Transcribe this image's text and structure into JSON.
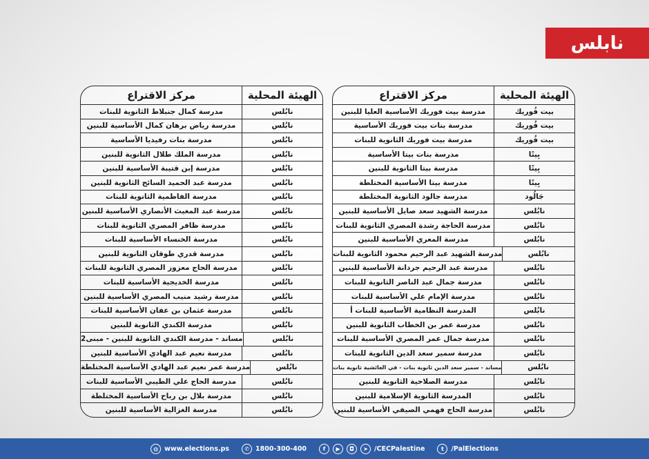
{
  "banner": {
    "title": "نابلس",
    "color": "#d0252b"
  },
  "table_headers": {
    "local_body": "الهيئة المحلية",
    "polling_center": "مركز الاقتراع"
  },
  "right_table": [
    [
      "بيت فُوريك",
      "مدرسة بيت فوريك الأساسية العليا للبنين"
    ],
    [
      "بيت فُوريك",
      "مدرسة بنات بيت فوريك الأساسية"
    ],
    [
      "بيت فُوريك",
      "مدرسة بيت فوريك الثانوية للبنات"
    ],
    [
      "بِيتًا",
      "مدرسة بنات بيتا الأساسية"
    ],
    [
      "بِيتًا",
      "مدرسة بيتا الثانوية للبنين"
    ],
    [
      "بِيتًا",
      "مدرسة بيتا الأساسية المختلطة"
    ],
    [
      "جَالُود",
      "مدرسة جالود الثانوية المختلطة"
    ],
    [
      "نابُلس",
      "مدرسة الشهيد سعد صايل الأساسية للبنين"
    ],
    [
      "نابُلس",
      "مدرسة الحاجة رشدة المصري الثانوية للبنات"
    ],
    [
      "نابُلس",
      "مدرسة المعري الأساسية للبنين"
    ],
    [
      "نابُلس",
      "مدرسة الشهيد عبد الرحيم محمود الثانوية للبنات"
    ],
    [
      "نابُلس",
      "مدرسة عبد الرحيم جردانة الأساسية للبنين"
    ],
    [
      "نابُلس",
      "مدرسة جمال عبد الناصر الثانوية للبنات"
    ],
    [
      "نابُلس",
      "مدرسة الإمام علي الأساسية للبنات"
    ],
    [
      "نابُلس",
      "المدرسة النظامية الأساسية للبنات أ"
    ],
    [
      "نابُلس",
      "مدرسة عمر بن الخطاب الثانوية للبنين"
    ],
    [
      "نابُلس",
      "مدرسة جمال عمر المصري الأساسية للبنات"
    ],
    [
      "نابُلس",
      "مدرسة سمير سعد الدين الثانوية للبنات"
    ],
    [
      "نابُلس",
      "مساند - سمير سعد الدين ثانوية بنات - في العائشية ثانوية بنات"
    ],
    [
      "نابُلس",
      "مدرسة الصلاحية الثانوية للبنين"
    ],
    [
      "نابُلس",
      "المدرسة الثانوية الإسلامية للبنين"
    ],
    [
      "نابُلس",
      "مدرسة الحاج فهمي الصيفي الأساسية للبنين"
    ]
  ],
  "left_table": [
    [
      "نابُلس",
      "مدرسة كمال جنبلاط الثانوية للبنات"
    ],
    [
      "نابُلس",
      "مدرسة رياض برهان كمال الأساسية للبنين"
    ],
    [
      "نابُلس",
      "مدرسة بنات رفيديا الأساسية"
    ],
    [
      "نابُلس",
      "مدرسة الملك طلال الثانوية للبنين"
    ],
    [
      "نابُلس",
      "مدرسة إبن قتيبة الأساسية للبنين"
    ],
    [
      "نابُلس",
      "مدرسة عبد الحميد السائح الثانوية للبنين"
    ],
    [
      "نابُلس",
      "مدرسة الفاطمية الثانوية للبنات"
    ],
    [
      "نابُلس",
      "مدرسة عبد المغيث الأنصاري الأساسية للبنين"
    ],
    [
      "نابُلس",
      "مدرسة ظافر المصري الثانوية للبنات"
    ],
    [
      "نابُلس",
      "مدرسة الخنساء الأساسية للبنات"
    ],
    [
      "نابُلس",
      "مدرسة قدري طوقان الثانوية للبنين"
    ],
    [
      "نابُلس",
      "مدرسة الحاج معزوز المصري الثانوية للبنات"
    ],
    [
      "نابُلس",
      "مدرسة الخديجية الأساسية للبنات"
    ],
    [
      "نابُلس",
      "مدرسة رشيد منيب المصري الأساسية للبنين"
    ],
    [
      "نابُلس",
      "مدرسة عثمان بن عفان الأساسية للبنات"
    ],
    [
      "نابُلس",
      "مدرسة الكندي الثانوية للبنين"
    ],
    [
      "نابُلس",
      "مساند - مدرسة الكندي الثانوية للبنين - مبنى2"
    ],
    [
      "نابُلس",
      "مدرسة نعيم عبد الهادي الأساسية للبنين"
    ],
    [
      "نابُلس",
      "مدرسة عمر نعيم عبد الهادي الأساسية المختلطة"
    ],
    [
      "نابُلس",
      "مدرسة الحاج علي الطيبي الأساسية للبنات"
    ],
    [
      "نابُلس",
      "مدرسة بلال بن رباح الأساسية المختلطة"
    ],
    [
      "نابُلس",
      "مدرسة الغزالية الأساسية للبنين"
    ]
  ],
  "footer": {
    "website": "www.elections.ps",
    "phone": "1800-300-400",
    "social_handle": "/CECPalestine",
    "twitter_handle": "/PalElections",
    "color": "#2f5ea6"
  }
}
